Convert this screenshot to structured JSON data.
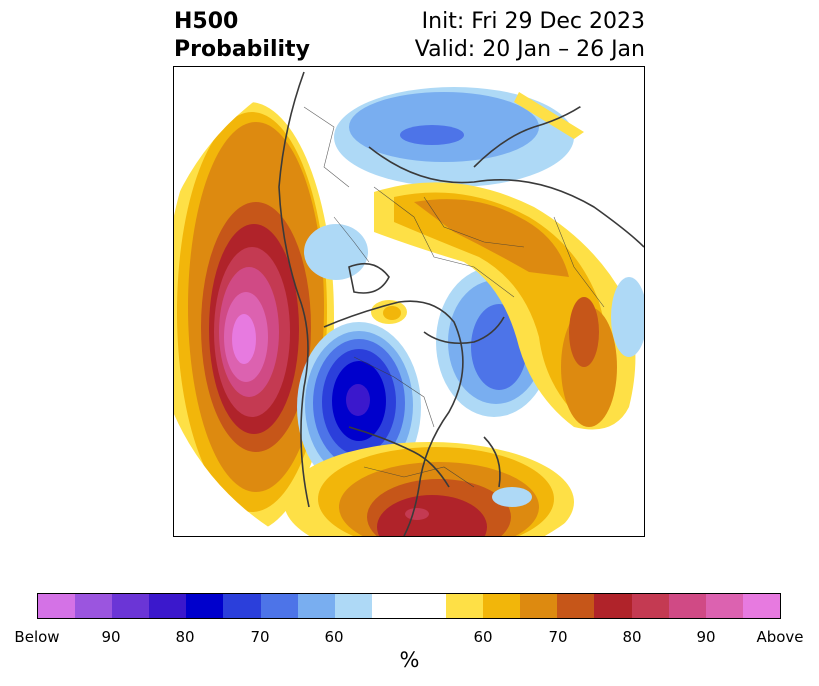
{
  "title": {
    "left_line1": "H500",
    "left_line2": "Probability",
    "right_line1": "Init: Fri 29 Dec 2023",
    "right_line2": "Valid: 20 Jan – 26 Jan"
  },
  "map": {
    "projection": "north-polar-stereographic",
    "features": [
      {
        "region": "northeast Pacific / Gulf of Alaska",
        "category": "Above",
        "peak_probability": "90+"
      },
      {
        "region": "Canada / northern United States",
        "category": "Below",
        "peak_probability": "80-90"
      },
      {
        "region": "southeastern United States",
        "category": "Above",
        "peak_probability": "80-90"
      },
      {
        "region": "Arctic Ocean / Greenland side",
        "category": "Below",
        "peak_probability": "70-80"
      },
      {
        "region": "Russia / Siberia",
        "category": "Above",
        "peak_probability": "60-70"
      },
      {
        "region": "western Siberia / Urals",
        "category": "Above",
        "peak_probability": "70-80"
      },
      {
        "region": "Europe",
        "category": "Below",
        "peak_probability": "60-70"
      },
      {
        "region": "Pacific coast (off Baja California)",
        "category": "Above",
        "peak_probability": "60-70"
      }
    ],
    "coastline_color": "#3a3a3a"
  },
  "colorbar": {
    "below_colors": [
      "#d472e6",
      "#9b55df",
      "#6b35d6",
      "#3b18cc",
      "#0000cc",
      "#2b3fdb",
      "#4d74e8",
      "#79aef0",
      "#aed9f6"
    ],
    "neutral_color": "#ffffff",
    "above_colors": [
      "#fee046",
      "#f2b60a",
      "#dd8a10",
      "#c65619",
      "#b0232a",
      "#c43a52",
      "#d04a85",
      "#dc62b0",
      "#e77ae0"
    ],
    "tick_labels": [
      "Below",
      "90",
      "80",
      "70",
      "60",
      "60",
      "70",
      "80",
      "90",
      "Above"
    ],
    "unit_label": "%"
  }
}
